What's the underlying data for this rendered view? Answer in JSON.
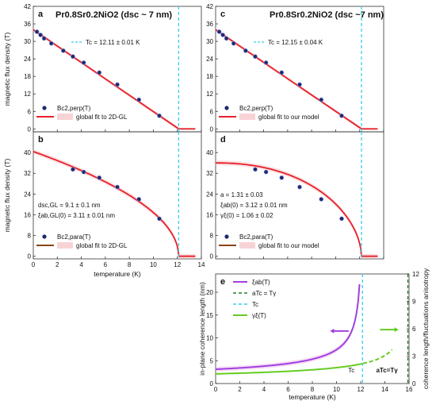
{
  "figure": {
    "left_title": "Pr0.8Sr0.2NiO2 (dsc ~ 7 nm)",
    "right_title": "Pr0.8Sr0.2NiO2 (dsc ~7 nm)",
    "colors": {
      "fit": "#e8202a",
      "fit_brown": "#8b4513",
      "tc_line": "#35d0ec",
      "marker": "#1e2a6e",
      "band": "#f6c8cc",
      "xi_ab": "#a040e0",
      "gamma": "#66cc22",
      "aTc": "#2d7d2d"
    }
  },
  "chart_data": [
    {
      "panel": "a",
      "type": "scatter",
      "xlabel": "",
      "ylabel": "magnetic flux density (T)",
      "xlim": [
        0,
        14
      ],
      "ylim": [
        -1,
        42
      ],
      "yticks": [
        0,
        6,
        12,
        18,
        24,
        30,
        36,
        42
      ],
      "tc_label": "Tc = 12.11 ± 0.01 K",
      "tc": 12.11,
      "series": [
        {
          "name": "Bc2,perp(T)",
          "kind": "points",
          "x": [
            0.3,
            0.6,
            0.9,
            1.5,
            2.5,
            3.3,
            4.2,
            5.5,
            7.0,
            8.8,
            10.5
          ],
          "y": [
            33.3,
            32.2,
            31.0,
            29.3,
            26.8,
            24.8,
            22.7,
            19.3,
            15.2,
            10.0,
            4.5
          ]
        },
        {
          "name": "global fit to 2D-GL",
          "kind": "line",
          "x": [
            0,
            12.11,
            13.5
          ],
          "y": [
            34.0,
            0,
            0
          ]
        }
      ]
    },
    {
      "panel": "b",
      "type": "scatter",
      "xlabel": "temperature (K)",
      "ylabel": "magnetic flux density (T)",
      "xlim": [
        0,
        14
      ],
      "ylim": [
        -1,
        48
      ],
      "yticks": [
        0,
        8,
        16,
        24,
        32,
        40
      ],
      "xticks": [
        0,
        2,
        4,
        6,
        8,
        10,
        12,
        14
      ],
      "annotations": [
        "dsc,GL = 9.1 ± 0.1 nm",
        "ξab,GL(0) = 3.11 ± 0.01 nm"
      ],
      "series": [
        {
          "name": "Bc2,para(T)",
          "kind": "points",
          "x": [
            3.3,
            4.2,
            5.5,
            7.0,
            8.8,
            10.5
          ],
          "y": [
            33.5,
            32.5,
            30.3,
            26.7,
            22.0,
            14.5
          ]
        },
        {
          "name": "global fit to 2D-GL",
          "kind": "sqrt-line",
          "b0": 40.4,
          "tc": 12.11
        }
      ]
    },
    {
      "panel": "c",
      "type": "scatter",
      "xlabel": "",
      "ylabel": "",
      "xlim": [
        0,
        14
      ],
      "ylim": [
        -1,
        42
      ],
      "yticks": [
        0,
        6,
        12,
        18,
        24,
        30,
        36,
        42
      ],
      "tc_label": "Tc = 12.15 ± 0.04 K",
      "tc": 12.15,
      "series": [
        {
          "name": "Bc2,perp(T)",
          "kind": "points",
          "x": [
            0.3,
            0.6,
            0.9,
            1.5,
            2.5,
            3.3,
            4.2,
            5.5,
            7.0,
            8.8,
            10.5
          ],
          "y": [
            33.3,
            32.2,
            31.0,
            29.3,
            26.8,
            24.8,
            22.7,
            19.3,
            15.2,
            10.0,
            4.5
          ]
        },
        {
          "name": "global fit to our model",
          "kind": "line",
          "x": [
            0,
            12.15,
            13.5
          ],
          "y": [
            34.0,
            0,
            0
          ]
        }
      ]
    },
    {
      "panel": "d",
      "type": "scatter",
      "xlabel": "",
      "ylabel": "",
      "xlim": [
        0,
        14
      ],
      "ylim": [
        -1,
        48
      ],
      "yticks": [
        0,
        8,
        16,
        24,
        32,
        40
      ],
      "annotations": [
        "a = 1.31 ± 0.03",
        "ξab(0) = 3.12 ± 0.01 nm",
        "γξ(0) = 1.06 ± 0.02"
      ],
      "series": [
        {
          "name": "Bc2,para(T)",
          "kind": "points",
          "x": [
            3.3,
            4.2,
            5.5,
            7.0,
            8.8,
            10.5
          ],
          "y": [
            33.5,
            32.5,
            30.3,
            26.7,
            22.0,
            14.5
          ]
        },
        {
          "name": "global fit to our model",
          "kind": "model-line",
          "b0": 36.0,
          "tc": 12.15
        }
      ]
    },
    {
      "panel": "e",
      "type": "line",
      "xlabel": "temperature (K)",
      "ylabel": "in-plane coherence length (nm)",
      "ylabel_right": "coherence length/fluctuations anisotropy",
      "xlim": [
        0,
        16
      ],
      "ylim": [
        0,
        24
      ],
      "ylim_right": [
        0,
        12
      ],
      "xticks": [
        0,
        2,
        4,
        6,
        8,
        10,
        12,
        14,
        16
      ],
      "yticks": [
        0,
        5,
        10,
        15,
        20
      ],
      "yticks_right": [
        0,
        3,
        6,
        9,
        12
      ],
      "labels": {
        "tc_marker": "Tc",
        "aTc_marker": "aTc=Tγ"
      },
      "series": [
        {
          "name": "ξab(T)",
          "kind": "xi",
          "xi0": 3.12,
          "tc": 12.15
        },
        {
          "name": "aTc = Tγ",
          "kind": "vline",
          "x": 15.9
        },
        {
          "name": "Tc",
          "kind": "vline",
          "x": 12.15
        },
        {
          "name": "γξ(T)",
          "kind": "gamma",
          "g0": 1.06,
          "tg": 15.9
        }
      ]
    }
  ]
}
